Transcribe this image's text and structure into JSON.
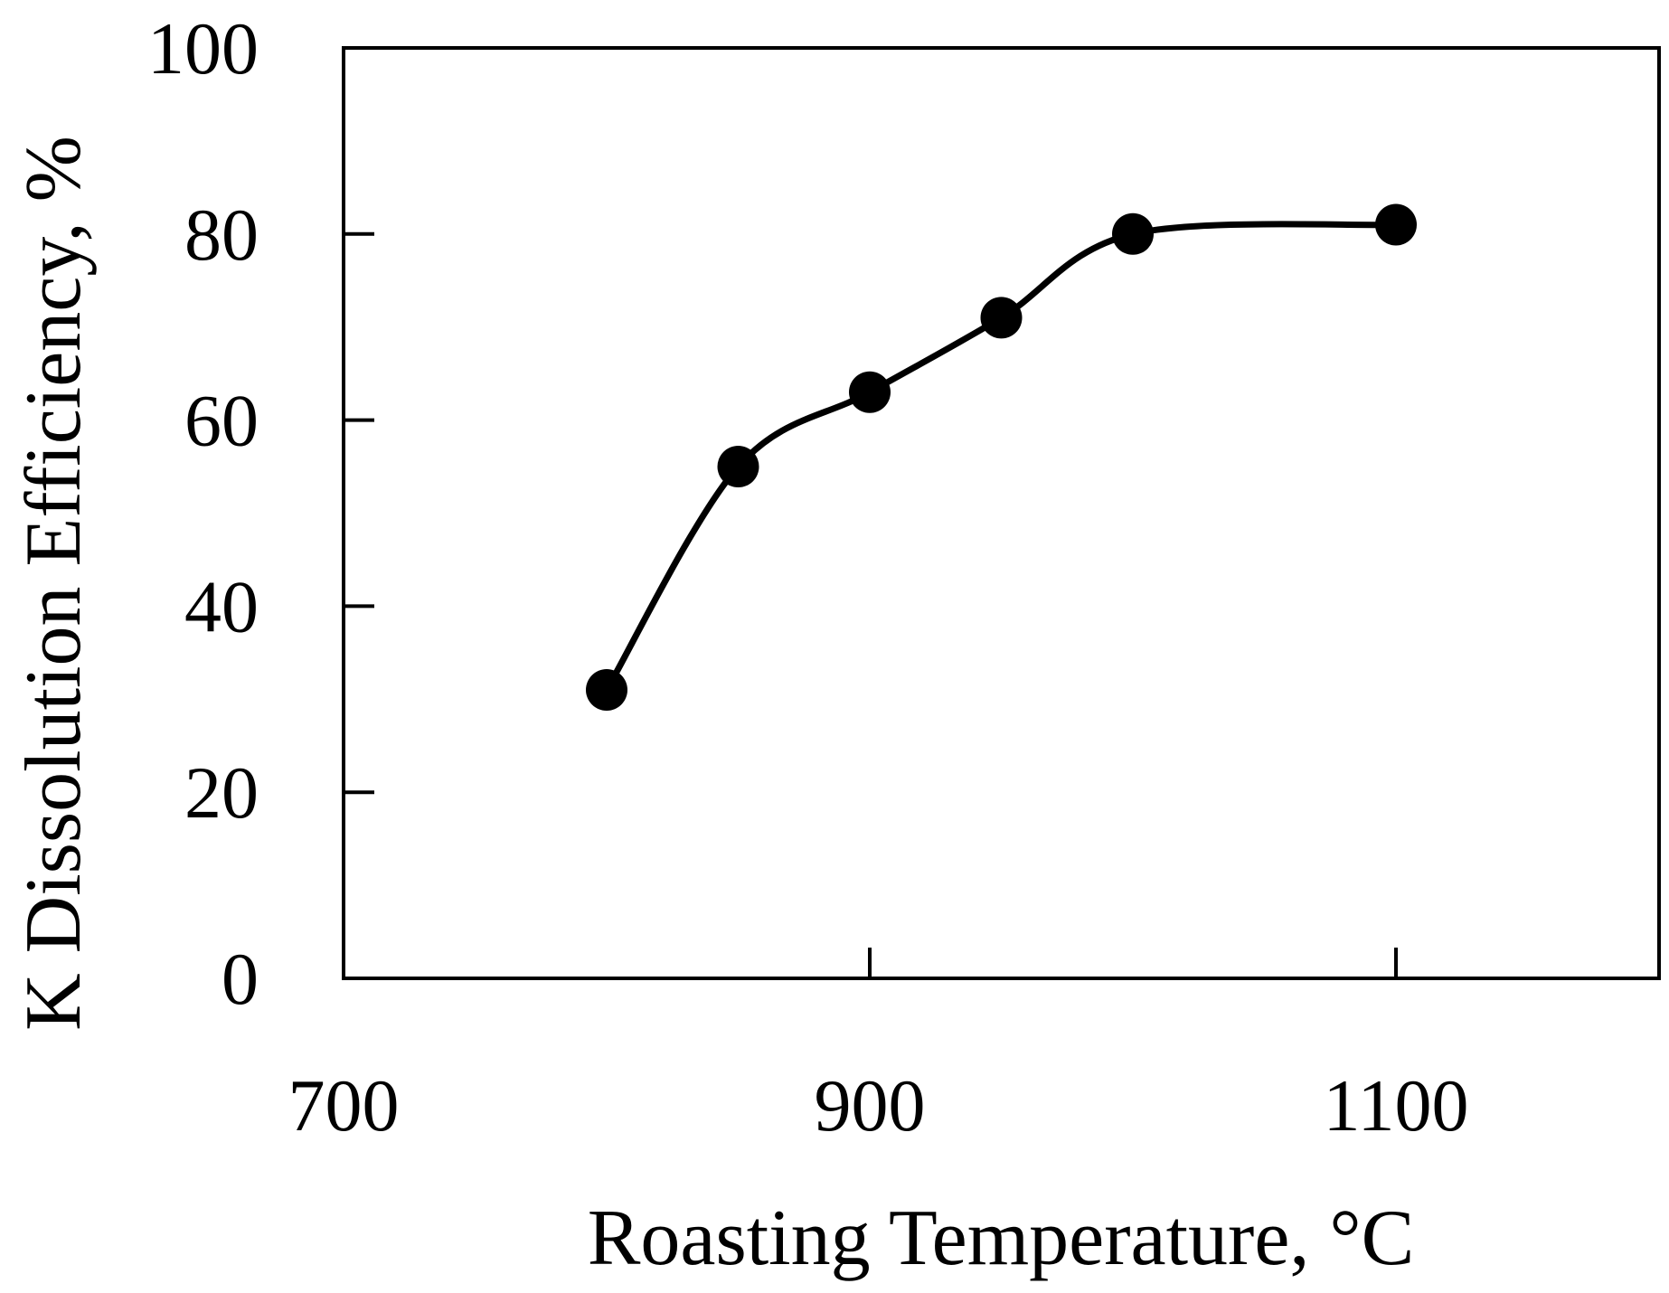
{
  "chart_data": {
    "type": "line",
    "title": "",
    "xlabel": "Roasting Temperature, °C",
    "ylabel": "K Dissolution Efficiency, %",
    "xlim": [
      700,
      1200
    ],
    "ylim": [
      0,
      100
    ],
    "xticks": [
      700,
      900,
      1100
    ],
    "yticks": [
      0,
      20,
      40,
      60,
      80,
      100
    ],
    "grid": false,
    "smooth": true,
    "series": [
      {
        "name": "K dissolution",
        "marker": "circle",
        "color": "#000000",
        "x": [
          800,
          850,
          900,
          950,
          1000,
          1100
        ],
        "y": [
          31,
          55,
          63,
          71,
          80,
          81
        ]
      }
    ]
  }
}
